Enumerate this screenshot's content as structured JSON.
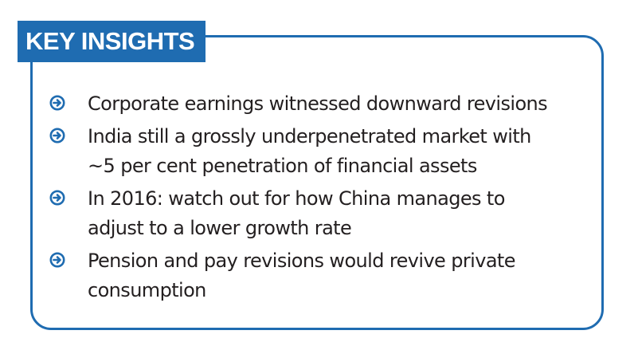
{
  "header": {
    "title": "KEY INSIGHTS"
  },
  "colors": {
    "accent": "#1f6cb1",
    "text": "#231f20",
    "background": "#ffffff"
  },
  "insights": [
    {
      "icon": "arrow-circle-right-icon",
      "lines": [
        "Corporate earnings witnessed downward revisions"
      ]
    },
    {
      "icon": "arrow-circle-right-icon",
      "lines": [
        "India still a grossly underpenetrated market with",
        "~5 per cent penetration of financial assets"
      ]
    },
    {
      "icon": "arrow-circle-right-icon",
      "lines": [
        "In 2016: watch out for how China manages to",
        "adjust to a lower growth rate"
      ]
    },
    {
      "icon": "arrow-circle-right-icon",
      "lines": [
        "Pension and pay revisions would revive private",
        "consumption"
      ]
    }
  ]
}
